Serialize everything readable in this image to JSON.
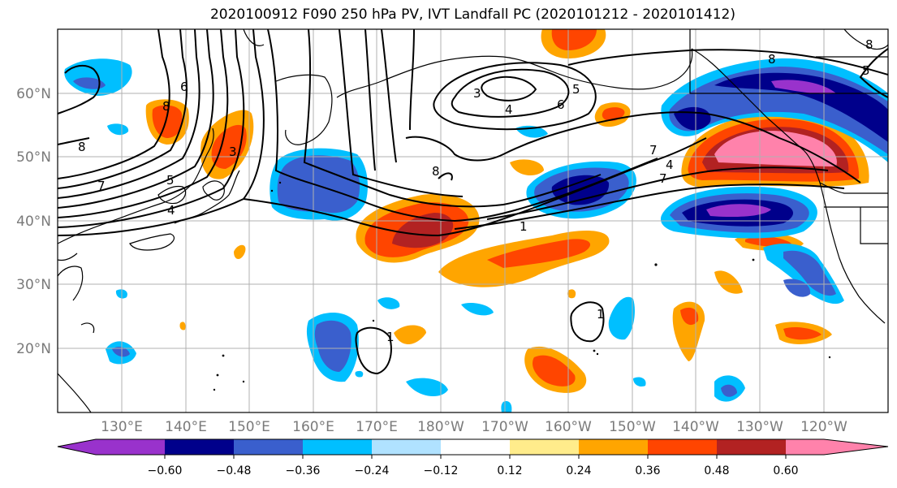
{
  "title": "2020100912 F090 250 hPa PV, IVT Landfall PC (2020101212 - 2020101412)",
  "lat_labels": [
    "60°N",
    "50°N",
    "40°N",
    "30°N",
    "20°N"
  ],
  "lon_labels": [
    "130°E",
    "140°E",
    "150°E",
    "160°E",
    "170°E",
    "180°W",
    "170°W",
    "160°W",
    "150°W",
    "140°W",
    "130°W",
    "120°W"
  ],
  "colorbar": {
    "tick_labels": [
      "−0.60",
      "−0.48",
      "−0.36",
      "−0.24",
      "−0.12",
      "0.12",
      "0.24",
      "0.36",
      "0.48",
      "0.60"
    ],
    "colors": [
      "#9932cc",
      "#00008b",
      "#3a5fcd",
      "#00bfff",
      "#b0e2ff",
      "#ffffff",
      "#ffec8b",
      "#ffa500",
      "#ff4500",
      "#b22222",
      "#ff82ab"
    ]
  },
  "contour_labels": [
    "8",
    "7",
    "6",
    "4",
    "8",
    "8",
    "3",
    "5",
    "3",
    "4",
    "5",
    "6",
    "8",
    "1",
    "7",
    "4",
    "7",
    "1",
    "1",
    "8",
    "5"
  ]
}
